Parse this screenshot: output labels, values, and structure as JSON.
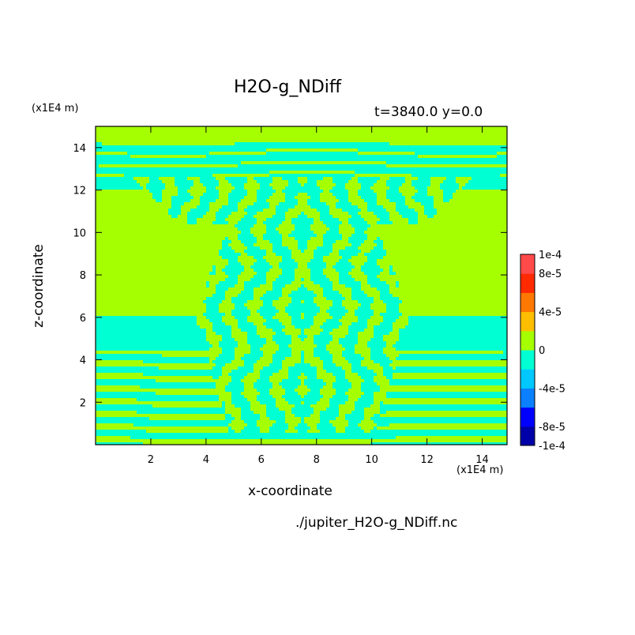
{
  "chart_data": {
    "type": "heatmap",
    "title": "H2O-g_NDiff",
    "time_info": "t=3840.0 y=0.0",
    "source_file": "./jupiter_H2O-g_NDiff.nc",
    "xlabel": "x-coordinate",
    "ylabel": "z-coordinate",
    "x_unit": "(x1E4 m)",
    "y_unit": "(x1E4 m)",
    "xlim": [
      0,
      14.9
    ],
    "ylim": [
      0,
      15
    ],
    "x_ticks": [
      "2",
      "4",
      "6",
      "8",
      "10",
      "12",
      "14"
    ],
    "y_ticks": [
      "2",
      "4",
      "6",
      "8",
      "10",
      "12",
      "14"
    ],
    "colorbar": {
      "range": [
        -0.0001,
        0.0001
      ],
      "tick_labels": [
        "1e-4",
        "8e-5",
        "4e-5",
        "0",
        "-4e-5",
        "-8e-5",
        "-1e-4"
      ],
      "colors": [
        "#0000a8",
        "#0000ff",
        "#0a80ff",
        "#00c8ff",
        "#00ffd2",
        "#a6ff00",
        "#ffbf00",
        "#ff7800",
        "#ff2a00",
        "#ff4a4a"
      ]
    },
    "field_description": "Values are mostly near zero, alternating between slightly negative (cyan) and slightly positive (yellow-green) bands; banded structure near bottom and top, columnar striations in center plume region.",
    "dominant_colors": {
      "negative_small": "#00ffd2",
      "positive_small": "#a6ff00"
    }
  }
}
